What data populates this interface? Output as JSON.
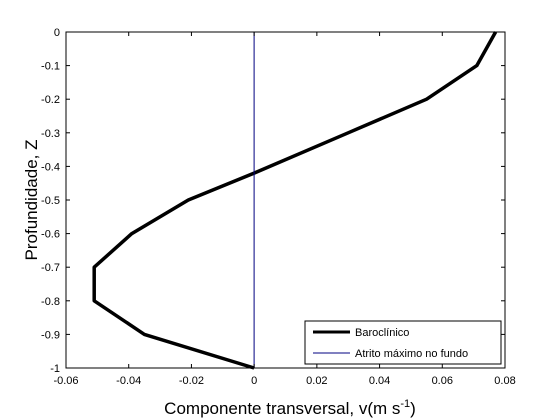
{
  "chart_data": {
    "type": "line",
    "xlabel": "Componente transversal, v(m s",
    "xlabel_sup": "-1",
    "xlabel_end": ")",
    "ylabel": "Profundidade, Z",
    "xlim": [
      -0.06,
      0.08
    ],
    "ylim": [
      -1,
      0
    ],
    "x_ticks": [
      -0.06,
      -0.04,
      -0.02,
      0,
      0.02,
      0.04,
      0.06,
      0.08
    ],
    "x_tick_labels": [
      "-0.06",
      "-0.04",
      "-0.02",
      "0",
      "0.02",
      "0.04",
      "0.06",
      "0.08"
    ],
    "y_ticks": [
      0,
      -0.1,
      -0.2,
      -0.3,
      -0.4,
      -0.5,
      -0.6,
      -0.7,
      -0.8,
      -0.9,
      -1
    ],
    "y_tick_labels": [
      "0",
      "-0.1",
      "-0.2",
      "-0.3",
      "-0.4",
      "-0.5",
      "-0.6",
      "-0.7",
      "-0.8",
      "-0.9",
      "-1"
    ],
    "grid": false,
    "legend_position": "bottom-right",
    "series": [
      {
        "name": "Baroclínico",
        "color": "#000000",
        "style": "thick",
        "x": [
          0.077,
          0.071,
          0.055,
          0.03,
          0.0,
          -0.021,
          -0.039,
          -0.051,
          -0.051,
          -0.035,
          0.0
        ],
        "y": [
          0.0,
          -0.1,
          -0.2,
          -0.3,
          -0.42,
          -0.5,
          -0.6,
          -0.7,
          -0.8,
          -0.9,
          -1.0
        ]
      },
      {
        "name": "Atrito máximo no fundo",
        "color": "#000080",
        "style": "thin",
        "x": [
          0.0,
          0.0
        ],
        "y": [
          0.0,
          -1.0
        ]
      }
    ]
  }
}
